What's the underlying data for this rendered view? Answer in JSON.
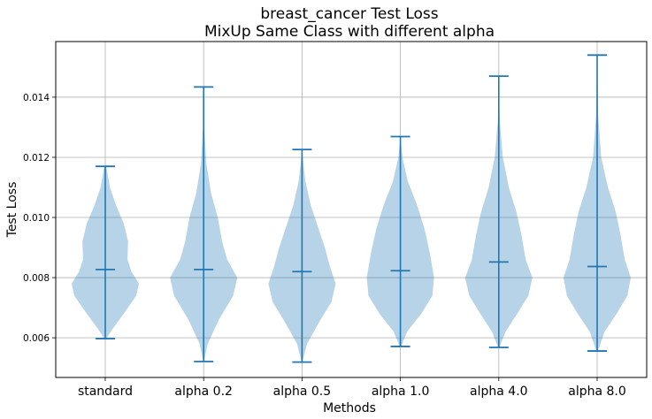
{
  "chart_data": {
    "type": "violin",
    "title": "breast_cancer Test Loss",
    "subtitle": "MixUp Same Class with different alpha",
    "xlabel": "Methods",
    "ylabel": "Test Loss",
    "ylim": [
      0.00468,
      0.01585
    ],
    "yticks": [
      "0.006",
      "0.008",
      "0.010",
      "0.012",
      "0.014"
    ],
    "ytick_values": [
      0.006,
      0.008,
      0.01,
      0.012,
      0.014
    ],
    "grid": true,
    "color": "#1f77b4",
    "categories": [
      "standard",
      "alpha 0.2",
      "alpha 0.5",
      "alpha 1.0",
      "alpha 4.0",
      "alpha 8.0"
    ],
    "series": [
      {
        "min": 0.00597,
        "mean": 0.00827,
        "max": 0.0117,
        "profile": [
          [
            0.00597,
            0.03
          ],
          [
            0.0063,
            0.22
          ],
          [
            0.0068,
            0.55
          ],
          [
            0.0074,
            0.92
          ],
          [
            0.0078,
            1.0
          ],
          [
            0.0082,
            0.78
          ],
          [
            0.0086,
            0.66
          ],
          [
            0.0092,
            0.68
          ],
          [
            0.0098,
            0.55
          ],
          [
            0.0104,
            0.32
          ],
          [
            0.011,
            0.14
          ],
          [
            0.0117,
            0.03
          ]
        ]
      },
      {
        "min": 0.00521,
        "mean": 0.00827,
        "max": 0.01434,
        "profile": [
          [
            0.00521,
            0.01
          ],
          [
            0.0058,
            0.12
          ],
          [
            0.0066,
            0.45
          ],
          [
            0.0074,
            0.88
          ],
          [
            0.008,
            1.0
          ],
          [
            0.0086,
            0.7
          ],
          [
            0.0092,
            0.55
          ],
          [
            0.01,
            0.42
          ],
          [
            0.0108,
            0.22
          ],
          [
            0.0118,
            0.08
          ],
          [
            0.013,
            0.02
          ],
          [
            0.01434,
            0.0
          ]
        ]
      },
      {
        "min": 0.00519,
        "mean": 0.0082,
        "max": 0.01226,
        "profile": [
          [
            0.00519,
            0.01
          ],
          [
            0.0058,
            0.15
          ],
          [
            0.0066,
            0.55
          ],
          [
            0.0072,
            0.88
          ],
          [
            0.0078,
            1.0
          ],
          [
            0.0084,
            0.82
          ],
          [
            0.009,
            0.68
          ],
          [
            0.0096,
            0.5
          ],
          [
            0.0104,
            0.26
          ],
          [
            0.0112,
            0.1
          ],
          [
            0.0118,
            0.04
          ],
          [
            0.01226,
            0.0
          ]
        ]
      },
      {
        "min": 0.00571,
        "mean": 0.00823,
        "max": 0.01269,
        "profile": [
          [
            0.00571,
            0.02
          ],
          [
            0.0062,
            0.2
          ],
          [
            0.0068,
            0.62
          ],
          [
            0.0074,
            0.95
          ],
          [
            0.008,
            1.0
          ],
          [
            0.0088,
            0.88
          ],
          [
            0.0096,
            0.72
          ],
          [
            0.0104,
            0.5
          ],
          [
            0.0112,
            0.22
          ],
          [
            0.012,
            0.06
          ],
          [
            0.01269,
            0.0
          ]
        ]
      },
      {
        "min": 0.00568,
        "mean": 0.00852,
        "max": 0.0147,
        "profile": [
          [
            0.00568,
            0.02
          ],
          [
            0.0062,
            0.2
          ],
          [
            0.0068,
            0.55
          ],
          [
            0.0074,
            0.88
          ],
          [
            0.008,
            1.0
          ],
          [
            0.0086,
            0.8
          ],
          [
            0.0094,
            0.68
          ],
          [
            0.0102,
            0.52
          ],
          [
            0.011,
            0.3
          ],
          [
            0.012,
            0.12
          ],
          [
            0.0132,
            0.03
          ],
          [
            0.0147,
            0.0
          ]
        ]
      },
      {
        "min": 0.00556,
        "mean": 0.00837,
        "max": 0.0154,
        "profile": [
          [
            0.00556,
            0.02
          ],
          [
            0.0062,
            0.22
          ],
          [
            0.0068,
            0.58
          ],
          [
            0.0074,
            0.9
          ],
          [
            0.008,
            1.0
          ],
          [
            0.0086,
            0.82
          ],
          [
            0.0094,
            0.7
          ],
          [
            0.0102,
            0.55
          ],
          [
            0.011,
            0.32
          ],
          [
            0.012,
            0.12
          ],
          [
            0.0134,
            0.03
          ],
          [
            0.0154,
            0.0
          ]
        ]
      }
    ]
  }
}
